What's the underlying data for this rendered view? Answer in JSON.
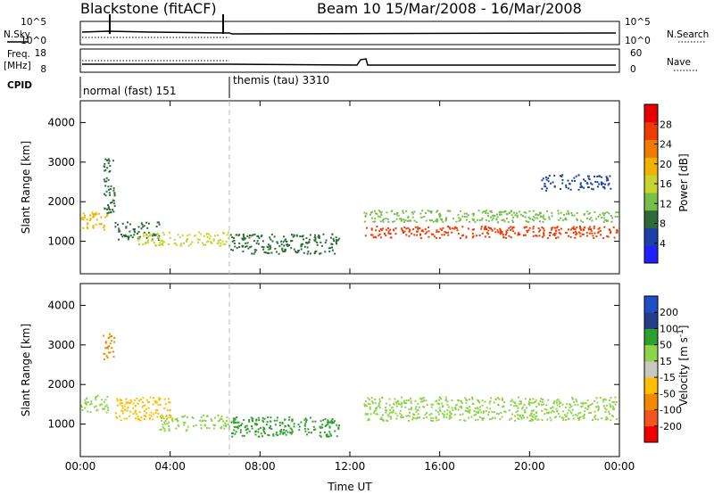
{
  "header": {
    "station": "Blackstone (fitACF)",
    "beam_date": "Beam 10  15/Mar/2008 - 16/Mar/2008"
  },
  "panels": {
    "sky_label": "N.Sky",
    "sky_ticks_left": [
      "10^5",
      "10^0"
    ],
    "sky_ticks_right": [
      "10^5",
      "10^0"
    ],
    "search_label": "N.Search",
    "freq_label_1": "Freq.",
    "freq_label_2": "[MHz]",
    "freq_ticks": [
      "18",
      "8"
    ],
    "nave_label": "Nave",
    "nave_ticks": [
      "60",
      "0"
    ],
    "cpid_label": "CPID",
    "cpid_segments": [
      "normal (fast) 151",
      "themis (tau) 3310"
    ]
  },
  "colors": {
    "power_scale": [
      "#1f1fff",
      "#1f3fa8",
      "#2c6b38",
      "#76c04a",
      "#c8d230",
      "#f2b300",
      "#f07b00",
      "#ee3b00",
      "#e60000"
    ],
    "velocity_scale": [
      "#ee0000",
      "#f2561c",
      "#f08a00",
      "#ffbf00",
      "#c8c8c0",
      "#8ed34a",
      "#2ea02e",
      "#243e8c",
      "#1f4fc4"
    ]
  },
  "chart_data": [
    {
      "type": "heatmap",
      "name": "power",
      "title": "",
      "xlabel": "Time UT",
      "ylabel": "Slant Range [km]",
      "x_ticks": [
        "00:00",
        "04:00",
        "08:00",
        "12:00",
        "16:00",
        "20:00",
        "00:00"
      ],
      "xlim": [
        0,
        24
      ],
      "ylim": [
        180,
        4550
      ],
      "y_ticks": [
        1000,
        2000,
        3000,
        4000
      ],
      "colorbar_label": "Power [dB]",
      "colorbar_ticks": [
        4,
        8,
        12,
        16,
        20,
        24,
        28
      ],
      "colorbar_range": [
        0,
        32
      ],
      "scatter_regions": [
        {
          "t_start": 0.0,
          "t_end": 1.2,
          "range_start": 1300,
          "range_end": 1750,
          "level": 20
        },
        {
          "t_start": 1.0,
          "t_end": 1.5,
          "range_start": 1700,
          "range_end": 3100,
          "level": 7
        },
        {
          "t_start": 1.5,
          "t_end": 3.5,
          "range_start": 1050,
          "range_end": 1500,
          "level": 6
        },
        {
          "t_start": 2.5,
          "t_end": 6.6,
          "range_start": 900,
          "range_end": 1250,
          "level": 14
        },
        {
          "t_start": 6.6,
          "t_end": 11.5,
          "range_start": 700,
          "range_end": 1200,
          "level": 9
        },
        {
          "t_start": 12.6,
          "t_end": 23.9,
          "range_start": 1500,
          "range_end": 1800,
          "level": 12
        },
        {
          "t_start": 12.6,
          "t_end": 23.9,
          "range_start": 1100,
          "range_end": 1400,
          "level": 26
        },
        {
          "t_start": 20.5,
          "t_end": 23.6,
          "range_start": 2300,
          "range_end": 2700,
          "level": 5
        }
      ]
    },
    {
      "type": "heatmap",
      "name": "velocity",
      "title": "",
      "xlabel": "Time UT",
      "ylabel": "Slant Range [km]",
      "x_ticks": [
        "00:00",
        "04:00",
        "08:00",
        "12:00",
        "16:00",
        "20:00",
        "00:00"
      ],
      "xlim": [
        0,
        24
      ],
      "ylim": [
        180,
        4550
      ],
      "y_ticks": [
        1000,
        2000,
        3000,
        4000
      ],
      "colorbar_label": "Velocity [m s^-1]",
      "colorbar_ticks": [
        "200",
        "100",
        "50",
        "15",
        "-15",
        "-50",
        "-100",
        "-200"
      ],
      "scatter_regions": [
        {
          "t_start": 0.0,
          "t_end": 1.2,
          "range_start": 1300,
          "range_end": 1750,
          "level": "15"
        },
        {
          "t_start": 1.0,
          "t_end": 1.5,
          "range_start": 2600,
          "range_end": 3300,
          "level": "-100"
        },
        {
          "t_start": 1.5,
          "t_end": 4.0,
          "range_start": 1100,
          "range_end": 1700,
          "level": "-50"
        },
        {
          "t_start": 3.5,
          "t_end": 6.6,
          "range_start": 850,
          "range_end": 1250,
          "level": "15"
        },
        {
          "t_start": 6.6,
          "t_end": 11.5,
          "range_start": 700,
          "range_end": 1200,
          "level": "50"
        },
        {
          "t_start": 12.6,
          "t_end": 23.9,
          "range_start": 1100,
          "range_end": 1700,
          "level": "15"
        }
      ]
    }
  ]
}
